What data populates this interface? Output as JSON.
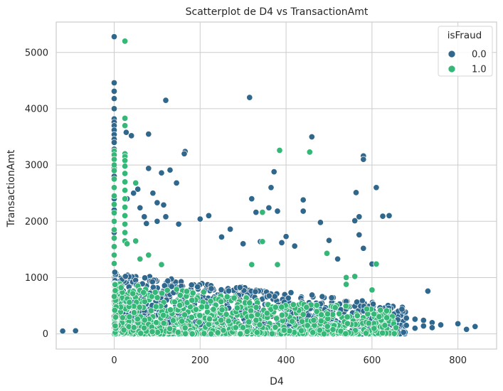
{
  "chart_data": {
    "type": "scatter",
    "title": "Scatterplot de D4 vs TransactionAmt",
    "xlabel": "D4",
    "ylabel": "TransactionAmt",
    "xlim": [
      -135,
      890
    ],
    "ylim": [
      -270,
      5540
    ],
    "xticks": [
      0,
      200,
      400,
      600,
      800
    ],
    "yticks": [
      0,
      1000,
      2000,
      3000,
      4000,
      5000
    ],
    "grid": true,
    "legend": {
      "title": "isFraud",
      "placement": "top-right"
    },
    "colors": {
      "0.0": "#30678d",
      "1.0": "#35b778",
      "marker_edge": "#ffffff",
      "grid": "#cccccc",
      "axes_edge": "#cccccc"
    },
    "series": [
      {
        "name": "0.0",
        "points": [
          [
            -120,
            50
          ],
          [
            -90,
            55
          ],
          [
            0,
            5280
          ],
          [
            0,
            4460
          ],
          [
            0,
            4310
          ],
          [
            0,
            4180
          ],
          [
            0,
            4000
          ],
          [
            0,
            3820
          ],
          [
            0,
            3760
          ],
          [
            0,
            3700
          ],
          [
            0,
            3620
          ],
          [
            0,
            3540
          ],
          [
            0,
            3460
          ],
          [
            0,
            3400
          ],
          [
            0,
            3280
          ],
          [
            0,
            3200
          ],
          [
            0,
            3100
          ],
          [
            0,
            2950
          ],
          [
            0,
            2800
          ],
          [
            0,
            2600
          ],
          [
            0,
            2400
          ],
          [
            0,
            2200
          ],
          [
            0,
            2000
          ],
          [
            0,
            1800
          ],
          [
            25,
            3700
          ],
          [
            28,
            3580
          ],
          [
            40,
            3520
          ],
          [
            80,
            3550
          ],
          [
            120,
            4150
          ],
          [
            315,
            4200
          ],
          [
            460,
            3500
          ],
          [
            165,
            3240
          ],
          [
            163,
            3200
          ],
          [
            372,
            2880
          ],
          [
            580,
            3160
          ],
          [
            580,
            3100
          ],
          [
            610,
            2600
          ],
          [
            563,
            2510
          ],
          [
            80,
            2940
          ],
          [
            90,
            2500
          ],
          [
            110,
            2860
          ],
          [
            130,
            2910
          ],
          [
            145,
            2680
          ],
          [
            100,
            2330
          ],
          [
            115,
            2290
          ],
          [
            55,
            2570
          ],
          [
            45,
            2500
          ],
          [
            30,
            2400
          ],
          [
            60,
            2240
          ],
          [
            70,
            2080
          ],
          [
            75,
            1960
          ],
          [
            100,
            2000
          ],
          [
            120,
            2080
          ],
          [
            150,
            1950
          ],
          [
            200,
            2040
          ],
          [
            220,
            2100
          ],
          [
            250,
            1720
          ],
          [
            270,
            1860
          ],
          [
            300,
            1600
          ],
          [
            320,
            2400
          ],
          [
            330,
            2160
          ],
          [
            340,
            1640
          ],
          [
            360,
            2240
          ],
          [
            365,
            2600
          ],
          [
            380,
            2180
          ],
          [
            390,
            1620
          ],
          [
            400,
            1730
          ],
          [
            420,
            1560
          ],
          [
            440,
            2180
          ],
          [
            440,
            2380
          ],
          [
            480,
            1980
          ],
          [
            500,
            1660
          ],
          [
            520,
            1330
          ],
          [
            570,
            1760
          ],
          [
            580,
            1520
          ],
          [
            600,
            1240
          ],
          [
            625,
            2090
          ],
          [
            640,
            2100
          ],
          [
            560,
            2010
          ],
          [
            570,
            2080
          ],
          [
            730,
            760
          ],
          [
            840,
            130
          ],
          [
            820,
            80
          ],
          [
            800,
            180
          ],
          [
            760,
            160
          ],
          [
            740,
            200
          ],
          [
            720,
            240
          ],
          [
            700,
            260
          ],
          [
            680,
            280
          ],
          [
            660,
            300
          ],
          [
            650,
            350
          ],
          [
            640,
            400
          ],
          [
            660,
            250
          ],
          [
            680,
            150
          ],
          [
            700,
            100
          ],
          [
            720,
            140
          ],
          [
            740,
            110
          ]
        ],
        "dense_region": {
          "x_range": [
            0,
            680
          ],
          "y_range": [
            0,
            1100
          ],
          "count": 1400
        }
      },
      {
        "name": "1.0",
        "points": [
          [
            25,
            5200
          ],
          [
            25,
            3830
          ],
          [
            25,
            3700
          ],
          [
            25,
            3200
          ],
          [
            25,
            3150
          ],
          [
            25,
            3080
          ],
          [
            50,
            2680
          ],
          [
            385,
            3260
          ],
          [
            455,
            3230
          ],
          [
            345,
            2160
          ],
          [
            345,
            1640
          ],
          [
            320,
            1230
          ],
          [
            380,
            1230
          ],
          [
            495,
            1430
          ],
          [
            610,
            1240
          ],
          [
            560,
            1020
          ],
          [
            540,
            880
          ],
          [
            600,
            780
          ],
          [
            540,
            1000
          ],
          [
            0,
            3250
          ],
          [
            0,
            3180
          ],
          [
            0,
            3100
          ],
          [
            0,
            3000
          ],
          [
            0,
            2900
          ],
          [
            0,
            2750
          ],
          [
            0,
            2600
          ],
          [
            0,
            2450
          ],
          [
            0,
            2300
          ],
          [
            0,
            2150
          ],
          [
            0,
            2000
          ],
          [
            0,
            1850
          ],
          [
            0,
            1700
          ],
          [
            0,
            1550
          ],
          [
            0,
            1400
          ],
          [
            0,
            1250
          ],
          [
            25,
            2980
          ],
          [
            25,
            2850
          ],
          [
            25,
            2700
          ],
          [
            25,
            2550
          ],
          [
            25,
            2400
          ],
          [
            25,
            2250
          ],
          [
            25,
            2100
          ],
          [
            25,
            1950
          ],
          [
            25,
            1800
          ],
          [
            25,
            1650
          ],
          [
            50,
            1650
          ],
          [
            30,
            1600
          ],
          [
            60,
            1330
          ],
          [
            80,
            1400
          ],
          [
            110,
            1230
          ]
        ],
        "dense_region": {
          "x_range": [
            0,
            660
          ],
          "y_range": [
            0,
            900
          ],
          "count": 1100
        }
      }
    ]
  }
}
